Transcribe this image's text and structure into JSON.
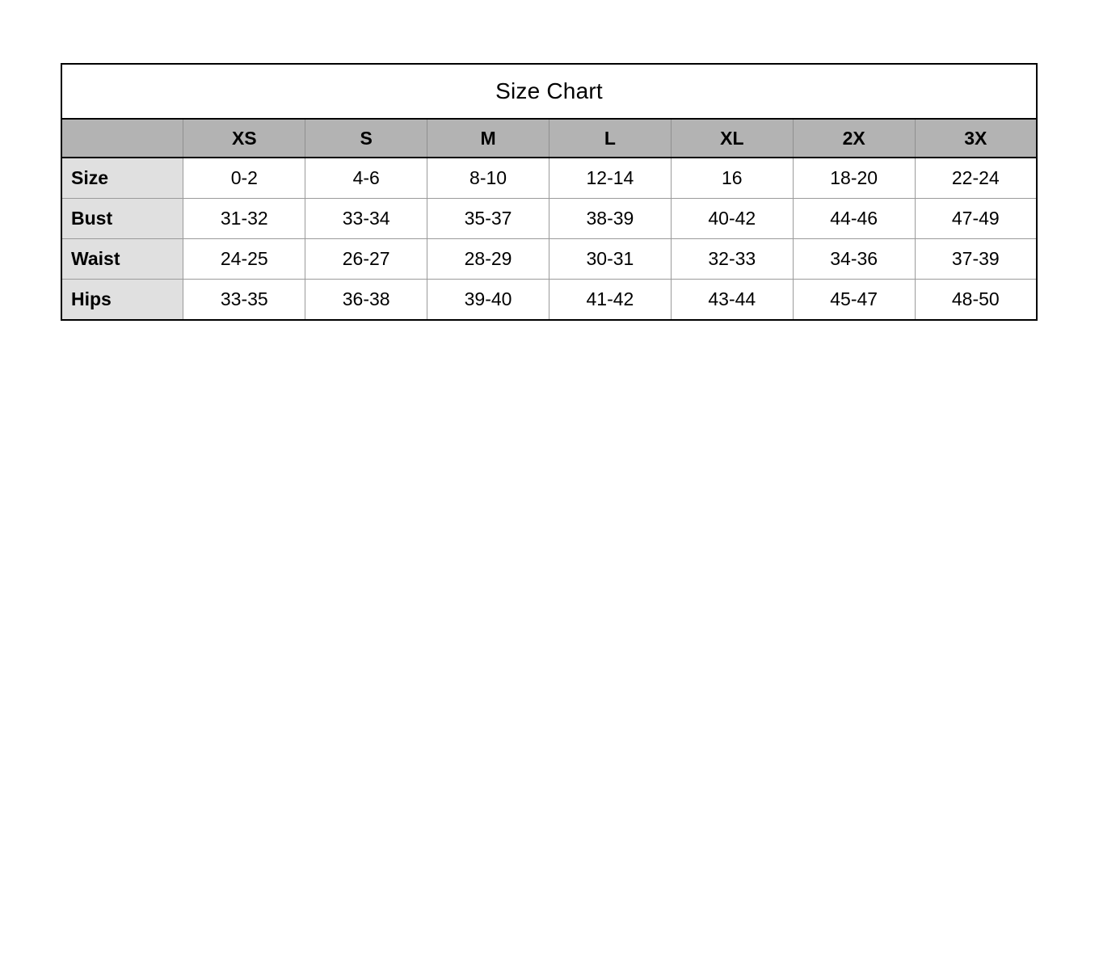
{
  "colors": {
    "page_bg": "#ffffff",
    "header_row_bg": "#b3b3b3",
    "row_label_bg": "#e0e0e0",
    "cell_bg": "#ffffff",
    "outer_border": "#000000",
    "inner_border": "#9a9a9a",
    "text": "#000000"
  },
  "chart_data": {
    "type": "table",
    "title": "Size Chart",
    "columns": [
      "",
      "XS",
      "S",
      "M",
      "L",
      "XL",
      "2X",
      "3X"
    ],
    "rows": [
      {
        "label": "Size",
        "values": [
          "0-2",
          "4-6",
          "8-10",
          "12-14",
          "16",
          "18-20",
          "22-24"
        ]
      },
      {
        "label": "Bust",
        "values": [
          "31-32",
          "33-34",
          "35-37",
          "38-39",
          "40-42",
          "44-46",
          "47-49"
        ]
      },
      {
        "label": "Waist",
        "values": [
          "24-25",
          "26-27",
          "28-29",
          "30-31",
          "32-33",
          "34-36",
          "37-39"
        ]
      },
      {
        "label": "Hips",
        "values": [
          "33-35",
          "36-38",
          "39-40",
          "41-42",
          "43-44",
          "45-47",
          "48-50"
        ]
      }
    ]
  }
}
